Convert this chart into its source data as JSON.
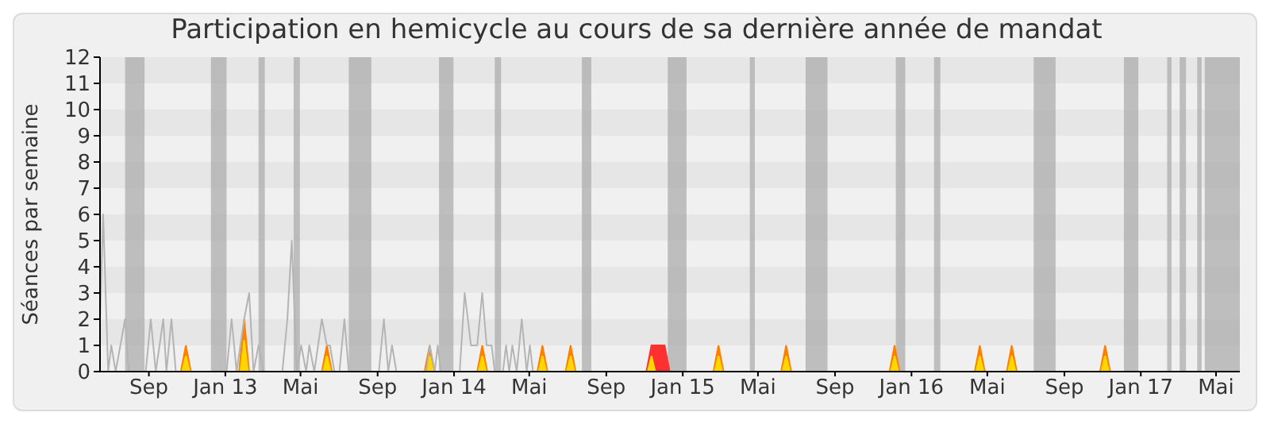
{
  "chart_data": {
    "type": "line",
    "title": "Participation en hemicycle au cours de sa dernière année de mandat",
    "ylabel": "Séances par semaine",
    "xlim": [
      "2012-06-15",
      "2017-06-08"
    ],
    "xticks": [
      {
        "value": "2012-09-01",
        "label": "Sep"
      },
      {
        "value": "2013-01-01",
        "label": "Jan 13"
      },
      {
        "value": "2013-05-01",
        "label": "Mai"
      },
      {
        "value": "2013-09-01",
        "label": "Sep"
      },
      {
        "value": "2014-01-01",
        "label": "Jan 14"
      },
      {
        "value": "2014-05-01",
        "label": "Mai"
      },
      {
        "value": "2014-09-01",
        "label": "Sep"
      },
      {
        "value": "2015-01-01",
        "label": "Jan 15"
      },
      {
        "value": "2015-05-01",
        "label": "Mai"
      },
      {
        "value": "2015-09-01",
        "label": "Sep"
      },
      {
        "value": "2016-01-01",
        "label": "Jan 16"
      },
      {
        "value": "2016-05-01",
        "label": "Mai"
      },
      {
        "value": "2016-09-01",
        "label": "Sep"
      },
      {
        "value": "2017-01-01",
        "label": "Jan 17"
      },
      {
        "value": "2017-05-01",
        "label": "Mai"
      }
    ],
    "ylim": [
      0,
      12
    ],
    "yticks": [
      0,
      1,
      2,
      3,
      4,
      5,
      6,
      7,
      8,
      9,
      10,
      11,
      12
    ],
    "series": [
      {
        "color": "#b4b4b4",
        "x": [
          "2012-06-15",
          "2012-06-20",
          "2012-06-28",
          "2012-07-03",
          "2012-07-10",
          "2012-07-25",
          "2012-07-31",
          "2012-08-27",
          "2012-09-04",
          "2012-09-12",
          "2012-09-24",
          "2012-09-29",
          "2012-10-07",
          "2012-10-14",
          "2013-01-03",
          "2013-01-11",
          "2013-01-19",
          "2013-01-31",
          "2013-02-08",
          "2013-02-15",
          "2013-02-23",
          "2013-03-03",
          "2013-04-02",
          "2013-04-10",
          "2013-04-17",
          "2013-04-25",
          "2013-05-02",
          "2013-05-10",
          "2013-05-15",
          "2013-05-23",
          "2013-06-04",
          "2013-06-12",
          "2013-06-17",
          "2013-06-24",
          "2013-07-02",
          "2013-07-10",
          "2013-07-17",
          "2013-09-03",
          "2013-09-11",
          "2013-09-18",
          "2013-09-24",
          "2013-10-01",
          "2013-11-18",
          "2013-11-23",
          "2013-12-01",
          "2013-12-06",
          "2013-12-11",
          "2014-01-10",
          "2014-01-18",
          "2014-01-28",
          "2014-02-07",
          "2014-02-15",
          "2014-02-22",
          "2014-03-02",
          "2014-03-07",
          "2014-03-20",
          "2014-03-25",
          "2014-03-30",
          "2014-04-04",
          "2014-04-11",
          "2014-04-19",
          "2014-04-27",
          "2014-05-02",
          "2014-05-07",
          "2017-06-08"
        ],
        "values": [
          2,
          6,
          0,
          1,
          0,
          2,
          0,
          0,
          2,
          0,
          2,
          0,
          2,
          0,
          0,
          2,
          0,
          2,
          3,
          0,
          1,
          0,
          0,
          2,
          5,
          0,
          1,
          0,
          1,
          0,
          2,
          1,
          1,
          0,
          0,
          2,
          0,
          0,
          2,
          0,
          1,
          0,
          0,
          1,
          0,
          1,
          0,
          0,
          3,
          1,
          1,
          3,
          1,
          1,
          0,
          0,
          1,
          0,
          1,
          0,
          2,
          0,
          1,
          0,
          0
        ]
      },
      {
        "type": "area",
        "color": "#ff7f00",
        "x": [
          "2012-06-15",
          "2012-10-22",
          "2012-10-30",
          "2012-11-07",
          "2013-01-23",
          "2013-01-31",
          "2013-02-08",
          "2013-06-04",
          "2013-06-12",
          "2013-06-20",
          "2013-11-15",
          "2013-11-23",
          "2013-12-01",
          "2014-02-07",
          "2014-02-15",
          "2014-02-23",
          "2014-05-14",
          "2014-05-22",
          "2014-05-30",
          "2014-06-28",
          "2014-07-06",
          "2014-07-14",
          "2015-02-19",
          "2015-02-27",
          "2015-03-07",
          "2015-06-07",
          "2015-06-15",
          "2015-06-23",
          "2015-11-27",
          "2015-12-05",
          "2015-12-13",
          "2016-04-11",
          "2016-04-19",
          "2016-04-27",
          "2016-06-01",
          "2016-06-09",
          "2016-06-17",
          "2016-10-28",
          "2016-11-05",
          "2016-11-13",
          "2017-06-08"
        ],
        "values": [
          0,
          0,
          1,
          0,
          0,
          2,
          0,
          0,
          1,
          0,
          0,
          1,
          0,
          0,
          1,
          0,
          0,
          1,
          0,
          0,
          1,
          0,
          0,
          1,
          0,
          0,
          1,
          0,
          0,
          1,
          0,
          0,
          1,
          0,
          0,
          1,
          0,
          0,
          1,
          0,
          0
        ]
      },
      {
        "type": "area",
        "color": "#ff3030",
        "x": [
          "2014-11-04",
          "2014-11-12",
          "2014-12-03",
          "2014-12-11"
        ],
        "values": [
          0,
          1,
          1,
          0
        ]
      },
      {
        "type": "area",
        "color": "#ffd700",
        "x": [
          "2012-06-15",
          "2012-10-24",
          "2012-10-30",
          "2012-11-05",
          "2013-01-25",
          "2013-01-31",
          "2013-02-06",
          "2013-06-06",
          "2013-06-12",
          "2013-06-18",
          "2013-11-17",
          "2013-11-23",
          "2013-11-29",
          "2014-02-09",
          "2014-02-15",
          "2014-02-21",
          "2014-05-16",
          "2014-05-22",
          "2014-05-28",
          "2014-06-30",
          "2014-07-06",
          "2014-07-12",
          "2014-11-06",
          "2014-11-12",
          "2014-11-18",
          "2015-02-21",
          "2015-02-27",
          "2015-03-05",
          "2015-06-09",
          "2015-06-15",
          "2015-06-21",
          "2015-11-29",
          "2015-12-05",
          "2015-12-11",
          "2016-04-13",
          "2016-04-19",
          "2016-04-25",
          "2016-06-03",
          "2016-06-09",
          "2016-06-15",
          "2016-10-30",
          "2016-11-05",
          "2016-11-11",
          "2017-06-08"
        ],
        "values": [
          0,
          0,
          0.6,
          0,
          0,
          1.2,
          0,
          0,
          0.6,
          0,
          0,
          0.6,
          0,
          0,
          0.6,
          0,
          0,
          0.6,
          0,
          0,
          0.6,
          0,
          0,
          0.6,
          0,
          0,
          0.6,
          0,
          0,
          0.6,
          0,
          0,
          0.6,
          0,
          0,
          0.6,
          0,
          0,
          0.6,
          0,
          0,
          0.6,
          0,
          0
        ]
      }
    ],
    "bands": [
      {
        "axis": "y",
        "from": 1,
        "to": 2,
        "color": "#e6e6e6"
      },
      {
        "axis": "y",
        "from": 3,
        "to": 4,
        "color": "#e6e6e6"
      },
      {
        "axis": "y",
        "from": 5,
        "to": 6,
        "color": "#e6e6e6"
      },
      {
        "axis": "y",
        "from": 7,
        "to": 8,
        "color": "#e6e6e6"
      },
      {
        "axis": "y",
        "from": 9,
        "to": 10,
        "color": "#e6e6e6"
      },
      {
        "axis": "y",
        "from": 11,
        "to": 12,
        "color": "#e6e6e6"
      },
      {
        "axis": "x",
        "from": "2012-07-25",
        "to": "2012-08-25",
        "color": "#a8a8a8"
      },
      {
        "axis": "x",
        "from": "2012-12-09",
        "to": "2013-01-03",
        "color": "#a8a8a8"
      },
      {
        "axis": "x",
        "from": "2013-02-23",
        "to": "2013-03-05",
        "color": "#a8a8a8"
      },
      {
        "axis": "x",
        "from": "2013-04-20",
        "to": "2013-04-30",
        "color": "#a8a8a8"
      },
      {
        "axis": "x",
        "from": "2013-07-17",
        "to": "2013-08-22",
        "color": "#a8a8a8"
      },
      {
        "axis": "x",
        "from": "2013-12-08",
        "to": "2013-12-31",
        "color": "#a8a8a8"
      },
      {
        "axis": "x",
        "from": "2014-03-07",
        "to": "2014-03-17",
        "color": "#a8a8a8"
      },
      {
        "axis": "x",
        "from": "2014-07-24",
        "to": "2014-08-08",
        "color": "#a8a8a8"
      },
      {
        "axis": "x",
        "from": "2014-12-08",
        "to": "2015-01-07",
        "color": "#a8a8a8"
      },
      {
        "axis": "x",
        "from": "2015-04-18",
        "to": "2015-04-26",
        "color": "#a8a8a8"
      },
      {
        "axis": "x",
        "from": "2015-07-16",
        "to": "2015-08-20",
        "color": "#a8a8a8"
      },
      {
        "axis": "x",
        "from": "2015-12-07",
        "to": "2015-12-22",
        "color": "#a8a8a8"
      },
      {
        "axis": "x",
        "from": "2016-02-06",
        "to": "2016-02-16",
        "color": "#a8a8a8"
      },
      {
        "axis": "x",
        "from": "2016-07-14",
        "to": "2016-08-18",
        "color": "#a8a8a8"
      },
      {
        "axis": "x",
        "from": "2016-12-05",
        "to": "2016-12-28",
        "color": "#a8a8a8"
      },
      {
        "axis": "x",
        "from": "2017-02-12",
        "to": "2017-02-19",
        "color": "#a8a8a8"
      },
      {
        "axis": "x",
        "from": "2017-03-04",
        "to": "2017-03-14",
        "color": "#a8a8a8"
      },
      {
        "axis": "x",
        "from": "2017-04-01",
        "to": "2017-04-08",
        "color": "#a8a8a8"
      },
      {
        "axis": "x",
        "from": "2017-04-13",
        "to": "2017-06-08",
        "color": "#a8a8a8"
      }
    ]
  }
}
